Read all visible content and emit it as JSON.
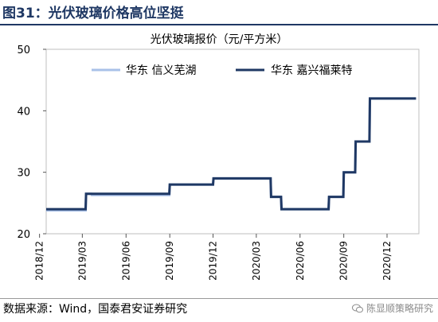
{
  "figure": {
    "title": "图31：光伏玻璃价格高位坚挺",
    "source": "数据来源：Wind，国泰君安证券研究",
    "watermark": "陈显顺策略研究"
  },
  "chart_data": {
    "type": "line",
    "step": true,
    "title": "光伏玻璃报价（元/平方米）",
    "xlabel": "",
    "ylabel": "",
    "ylim": [
      20,
      50
    ],
    "yticks": [
      20,
      30,
      40,
      50
    ],
    "x_tick_labels": [
      "2018/12",
      "2019/03",
      "2019/06",
      "2019/09",
      "2019/12",
      "2020/03",
      "2020/06",
      "2020/09",
      "2020/12"
    ],
    "grid": false,
    "legend": "top",
    "series": [
      {
        "name": "华东 信义芜湖",
        "color": "#a9c1e8",
        "points": [
          [
            "2018-12-15",
            23.8
          ],
          [
            "2019-03-08",
            23.8
          ],
          [
            "2019-03-09",
            26.5
          ],
          [
            "2019-03-20",
            26.5
          ],
          [
            "2019-03-21",
            26.3
          ],
          [
            "2019-08-31",
            26.3
          ],
          [
            "2019-09-01",
            28.0
          ],
          [
            "2019-12-01",
            28.0
          ],
          [
            "2019-12-02",
            29.0
          ],
          [
            "2020-03-31",
            29.0
          ],
          [
            "2020-04-01",
            26.0
          ],
          [
            "2020-04-22",
            26.0
          ],
          [
            "2020-04-23",
            24.0
          ],
          [
            "2020-07-31",
            24.0
          ],
          [
            "2020-08-01",
            26.0
          ],
          [
            "2020-08-31",
            26.0
          ],
          [
            "2020-09-01",
            30.0
          ],
          [
            "2020-09-25",
            30.0
          ],
          [
            "2020-09-26",
            35.0
          ],
          [
            "2020-10-25",
            35.0
          ],
          [
            "2020-10-26",
            42.0
          ],
          [
            "2021-01-31",
            42.0
          ]
        ]
      },
      {
        "name": "华东 嘉兴福莱特",
        "color": "#1f3864",
        "points": [
          [
            "2018-12-15",
            24.0
          ],
          [
            "2019-03-08",
            24.0
          ],
          [
            "2019-03-09",
            26.5
          ],
          [
            "2019-03-20",
            26.5
          ],
          [
            "2019-03-21",
            26.5
          ],
          [
            "2019-08-31",
            26.5
          ],
          [
            "2019-09-01",
            28.0
          ],
          [
            "2019-12-01",
            28.0
          ],
          [
            "2019-12-02",
            29.0
          ],
          [
            "2020-03-31",
            29.0
          ],
          [
            "2020-04-01",
            26.0
          ],
          [
            "2020-04-22",
            26.0
          ],
          [
            "2020-04-23",
            24.0
          ],
          [
            "2020-07-31",
            24.0
          ],
          [
            "2020-08-01",
            26.0
          ],
          [
            "2020-08-31",
            26.0
          ],
          [
            "2020-09-01",
            30.0
          ],
          [
            "2020-09-25",
            30.0
          ],
          [
            "2020-09-26",
            35.0
          ],
          [
            "2020-10-25",
            35.0
          ],
          [
            "2020-10-26",
            42.0
          ],
          [
            "2021-01-31",
            42.0
          ]
        ]
      }
    ]
  }
}
